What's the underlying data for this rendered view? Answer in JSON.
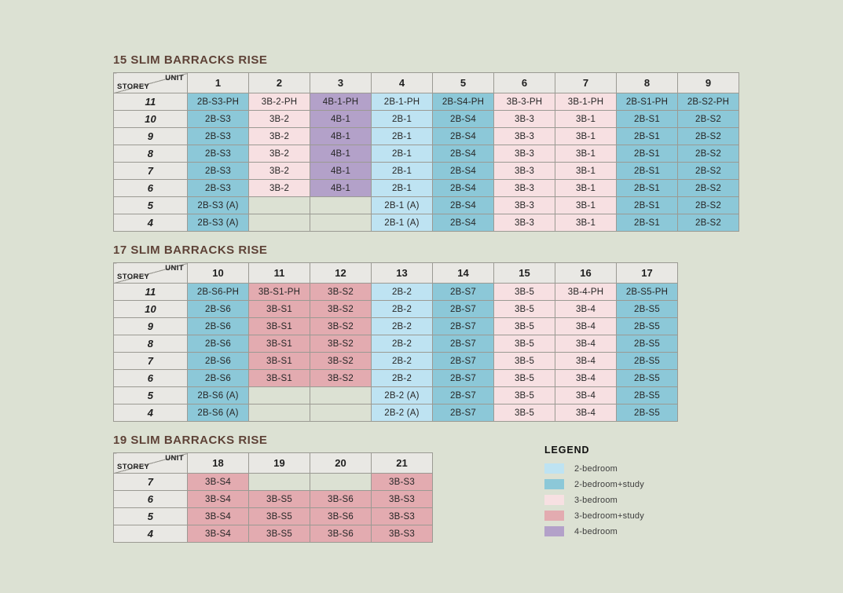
{
  "palette": {
    "2B": "#bee3f2",
    "2B-S": "#8cc8d8",
    "3B": "#f7e0e2",
    "3B-S": "#e3abb0",
    "4B": "#b3a1c9",
    "page_background": "#dce1d3",
    "header_fill": "#e9e8e4",
    "grid_line": "#9b9a93",
    "title_color": "#5e4237"
  },
  "corner": {
    "unit_label": "UNIT",
    "storey_label": "STOREY"
  },
  "buildings": [
    {
      "title": "15 SLIM BARRACKS RISE",
      "units": [
        "1",
        "2",
        "3",
        "4",
        "5",
        "6",
        "7",
        "8",
        "9"
      ],
      "storeys": [
        "11",
        "10",
        "9",
        "8",
        "7",
        "6",
        "5",
        "4"
      ],
      "rows": [
        [
          "2B-S3-PH",
          "3B-2-PH",
          "4B-1-PH",
          "2B-1-PH",
          "2B-S4-PH",
          "3B-3-PH",
          "3B-1-PH",
          "2B-S1-PH",
          "2B-S2-PH"
        ],
        [
          "2B-S3",
          "3B-2",
          "4B-1",
          "2B-1",
          "2B-S4",
          "3B-3",
          "3B-1",
          "2B-S1",
          "2B-S2"
        ],
        [
          "2B-S3",
          "3B-2",
          "4B-1",
          "2B-1",
          "2B-S4",
          "3B-3",
          "3B-1",
          "2B-S1",
          "2B-S2"
        ],
        [
          "2B-S3",
          "3B-2",
          "4B-1",
          "2B-1",
          "2B-S4",
          "3B-3",
          "3B-1",
          "2B-S1",
          "2B-S2"
        ],
        [
          "2B-S3",
          "3B-2",
          "4B-1",
          "2B-1",
          "2B-S4",
          "3B-3",
          "3B-1",
          "2B-S1",
          "2B-S2"
        ],
        [
          "2B-S3",
          "3B-2",
          "4B-1",
          "2B-1",
          "2B-S4",
          "3B-3",
          "3B-1",
          "2B-S1",
          "2B-S2"
        ],
        [
          "2B-S3 (A)",
          "",
          "",
          "2B-1 (A)",
          "2B-S4",
          "3B-3",
          "3B-1",
          "2B-S1",
          "2B-S2"
        ],
        [
          "2B-S3 (A)",
          "",
          "",
          "2B-1 (A)",
          "2B-S4",
          "3B-3",
          "3B-1",
          "2B-S1",
          "2B-S2"
        ]
      ]
    },
    {
      "title": "17 SLIM BARRACKS RISE",
      "units": [
        "10",
        "11",
        "12",
        "13",
        "14",
        "15",
        "16",
        "17"
      ],
      "storeys": [
        "11",
        "10",
        "9",
        "8",
        "7",
        "6",
        "5",
        "4"
      ],
      "rows": [
        [
          "2B-S6-PH",
          "3B-S1-PH",
          "3B-S2",
          "2B-2",
          "2B-S7",
          "3B-5",
          "3B-4-PH",
          "2B-S5-PH"
        ],
        [
          "2B-S6",
          "3B-S1",
          "3B-S2",
          "2B-2",
          "2B-S7",
          "3B-5",
          "3B-4",
          "2B-S5"
        ],
        [
          "2B-S6",
          "3B-S1",
          "3B-S2",
          "2B-2",
          "2B-S7",
          "3B-5",
          "3B-4",
          "2B-S5"
        ],
        [
          "2B-S6",
          "3B-S1",
          "3B-S2",
          "2B-2",
          "2B-S7",
          "3B-5",
          "3B-4",
          "2B-S5"
        ],
        [
          "2B-S6",
          "3B-S1",
          "3B-S2",
          "2B-2",
          "2B-S7",
          "3B-5",
          "3B-4",
          "2B-S5"
        ],
        [
          "2B-S6",
          "3B-S1",
          "3B-S2",
          "2B-2",
          "2B-S7",
          "3B-5",
          "3B-4",
          "2B-S5"
        ],
        [
          "2B-S6 (A)",
          "",
          "",
          "2B-2 (A)",
          "2B-S7",
          "3B-5",
          "3B-4",
          "2B-S5"
        ],
        [
          "2B-S6 (A)",
          "",
          "",
          "2B-2 (A)",
          "2B-S7",
          "3B-5",
          "3B-4",
          "2B-S5"
        ]
      ]
    },
    {
      "title": "19 SLIM BARRACKS RISE",
      "units": [
        "18",
        "19",
        "20",
        "21"
      ],
      "storeys": [
        "7",
        "6",
        "5",
        "4"
      ],
      "rows": [
        [
          "3B-S4",
          "",
          "",
          "3B-S3"
        ],
        [
          "3B-S4",
          "3B-S5",
          "3B-S6",
          "3B-S3"
        ],
        [
          "3B-S4",
          "3B-S5",
          "3B-S6",
          "3B-S3"
        ],
        [
          "3B-S4",
          "3B-S5",
          "3B-S6",
          "3B-S3"
        ]
      ]
    }
  ],
  "legend": {
    "title": "LEGEND",
    "items": [
      {
        "label": "2-bedroom",
        "type": "2B"
      },
      {
        "label": "2-bedroom+study",
        "type": "2B-S"
      },
      {
        "label": "3-bedroom",
        "type": "3B"
      },
      {
        "label": "3-bedroom+study",
        "type": "3B-S"
      },
      {
        "label": "4-bedroom",
        "type": "4B"
      }
    ]
  }
}
